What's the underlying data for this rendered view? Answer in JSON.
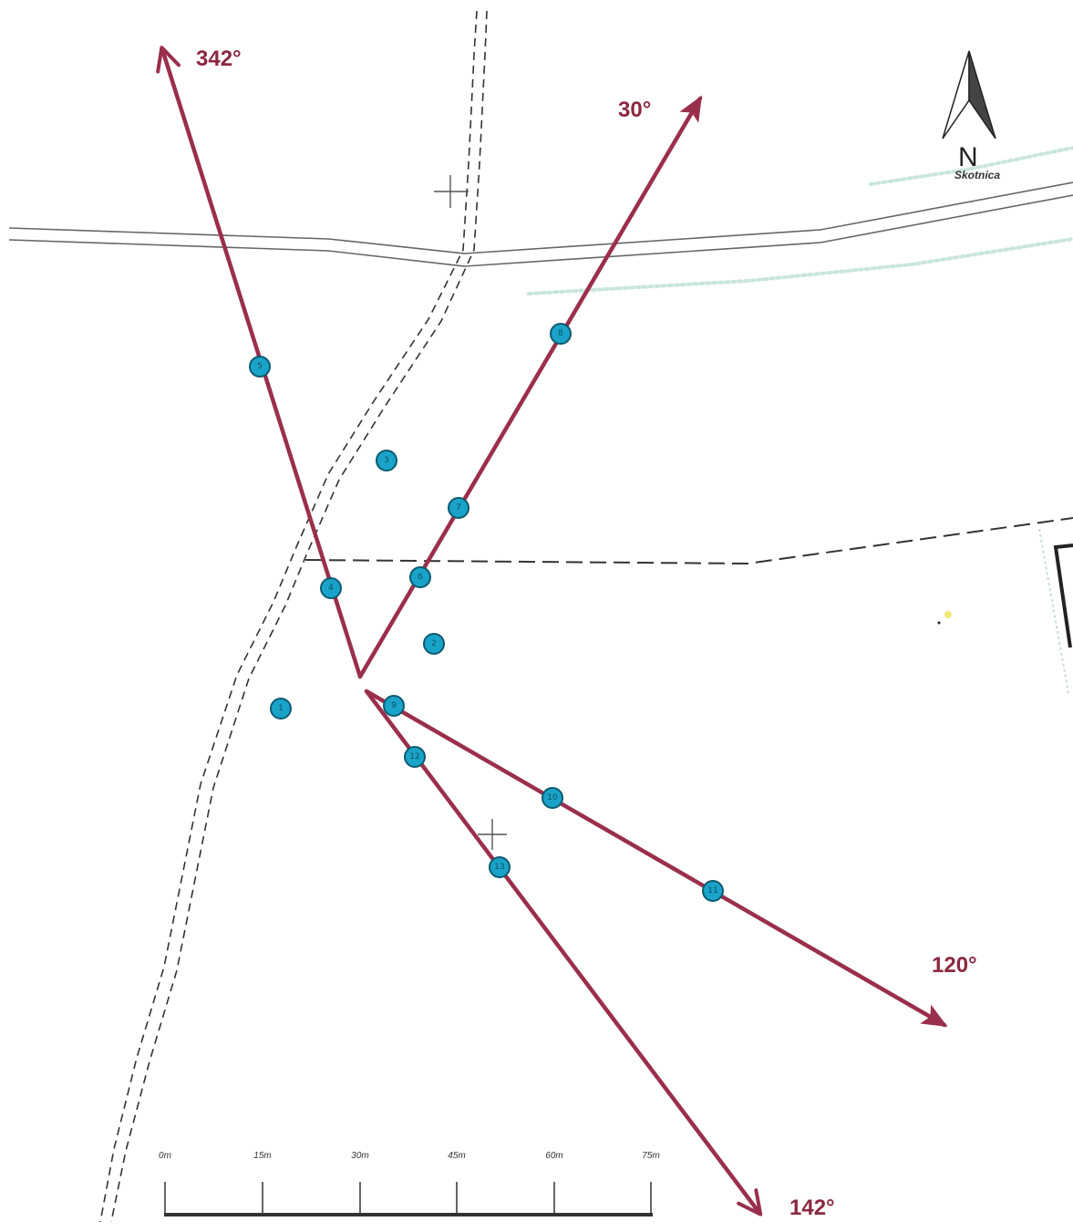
{
  "map": {
    "place_label": "Skotnica",
    "north_label": "N",
    "colors": {
      "arrow": "#9a2f4c",
      "point_fill": "#1aa3c8",
      "point_stroke": "#0d5a70",
      "road": "#555555"
    }
  },
  "bearings": [
    {
      "id": "b342",
      "label": "342°"
    },
    {
      "id": "b30",
      "label": "30°"
    },
    {
      "id": "b120",
      "label": "120°"
    },
    {
      "id": "b142",
      "label": "142°"
    }
  ],
  "points": [
    {
      "id": "1",
      "label": "1"
    },
    {
      "id": "2",
      "label": "2"
    },
    {
      "id": "3",
      "label": "3"
    },
    {
      "id": "4",
      "label": "4"
    },
    {
      "id": "5",
      "label": "5"
    },
    {
      "id": "6",
      "label": "6"
    },
    {
      "id": "7",
      "label": "7"
    },
    {
      "id": "8",
      "label": "8"
    },
    {
      "id": "9",
      "label": "9"
    },
    {
      "id": "10",
      "label": "10"
    },
    {
      "id": "11",
      "label": "11"
    },
    {
      "id": "12",
      "label": "12"
    },
    {
      "id": "13",
      "label": "13"
    }
  ],
  "scale_bar": {
    "ticks": [
      "0m",
      "15m",
      "30m",
      "45m",
      "60m",
      "75m"
    ]
  }
}
